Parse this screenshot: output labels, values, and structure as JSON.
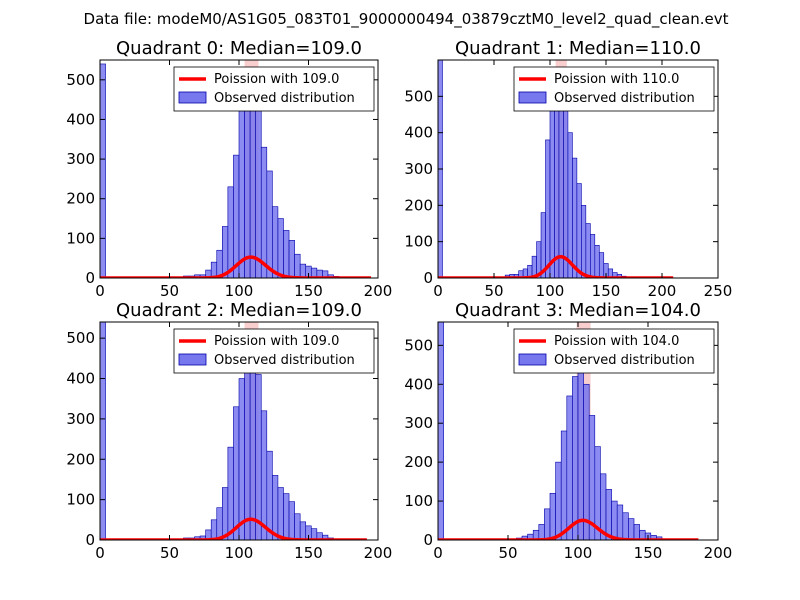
{
  "figure": {
    "title": "Data file: modeM0/AS1G05_083T01_9000000494_03879cztM0_level2_quad_clean.evt"
  },
  "colors": {
    "hist_fill": "#7777ee",
    "hist_edge": "#0000aa",
    "poisson_line": "#ff0000",
    "median_band": "#f3a6a6",
    "axes": "#000000"
  },
  "chart_data": [
    {
      "type": "bar",
      "title": "Quadrant 0: Median=109.0",
      "median": 109.0,
      "xlim": [
        0,
        200
      ],
      "ylim": [
        0,
        550
      ],
      "xticks": [
        0,
        50,
        100,
        150,
        200
      ],
      "yticks": [
        0,
        100,
        200,
        300,
        400,
        500
      ],
      "bin_width": 4,
      "bins": [
        [
          0,
          540
        ],
        [
          60,
          5
        ],
        [
          64,
          5
        ],
        [
          68,
          8
        ],
        [
          72,
          8
        ],
        [
          76,
          20
        ],
        [
          80,
          40
        ],
        [
          84,
          70
        ],
        [
          88,
          130
        ],
        [
          92,
          230
        ],
        [
          96,
          310
        ],
        [
          100,
          430
        ],
        [
          104,
          505
        ],
        [
          108,
          500
        ],
        [
          112,
          450
        ],
        [
          116,
          330
        ],
        [
          120,
          270
        ],
        [
          124,
          180
        ],
        [
          128,
          150
        ],
        [
          132,
          120
        ],
        [
          136,
          95
        ],
        [
          140,
          60
        ],
        [
          144,
          35
        ],
        [
          148,
          30
        ],
        [
          152,
          25
        ],
        [
          156,
          20
        ],
        [
          160,
          18
        ],
        [
          164,
          8
        ],
        [
          168,
          4
        ],
        [
          172,
          3
        ]
      ],
      "poisson_mean": 109.0,
      "poisson_scale": 4.0,
      "poisson_xmax": 195,
      "legend": [
        "Poission with 109.0",
        "Observed distribution"
      ]
    },
    {
      "type": "bar",
      "title": "Quadrant 1: Median=110.0",
      "median": 110.0,
      "xlim": [
        0,
        250
      ],
      "ylim": [
        0,
        600
      ],
      "xticks": [
        0,
        50,
        100,
        150,
        200,
        250
      ],
      "yticks": [
        0,
        100,
        200,
        300,
        400,
        500
      ],
      "bin_width": 4,
      "bins": [
        [
          0,
          600
        ],
        [
          60,
          8
        ],
        [
          64,
          10
        ],
        [
          68,
          10
        ],
        [
          72,
          20
        ],
        [
          76,
          25
        ],
        [
          80,
          35
        ],
        [
          84,
          60
        ],
        [
          88,
          100
        ],
        [
          92,
          180
        ],
        [
          96,
          380
        ],
        [
          100,
          460
        ],
        [
          104,
          510
        ],
        [
          108,
          535
        ],
        [
          112,
          490
        ],
        [
          116,
          400
        ],
        [
          120,
          330
        ],
        [
          124,
          260
        ],
        [
          128,
          200
        ],
        [
          132,
          150
        ],
        [
          136,
          120
        ],
        [
          140,
          90
        ],
        [
          144,
          70
        ],
        [
          148,
          40
        ],
        [
          152,
          25
        ],
        [
          156,
          15
        ],
        [
          160,
          10
        ],
        [
          164,
          5
        ]
      ],
      "poisson_mean": 110.0,
      "poisson_scale": 4.0,
      "poisson_xmax": 210,
      "legend": [
        "Poission with 110.0",
        "Observed distribution"
      ]
    },
    {
      "type": "bar",
      "title": "Quadrant 2: Median=109.0",
      "median": 109.0,
      "xlim": [
        0,
        200
      ],
      "ylim": [
        0,
        540
      ],
      "xticks": [
        0,
        50,
        100,
        150,
        200
      ],
      "yticks": [
        0,
        100,
        200,
        300,
        400,
        500
      ],
      "bin_width": 4,
      "bins": [
        [
          0,
          540
        ],
        [
          60,
          5
        ],
        [
          64,
          5
        ],
        [
          68,
          8
        ],
        [
          72,
          10
        ],
        [
          76,
          25
        ],
        [
          80,
          50
        ],
        [
          84,
          80
        ],
        [
          88,
          130
        ],
        [
          92,
          230
        ],
        [
          96,
          330
        ],
        [
          100,
          400
        ],
        [
          104,
          500
        ],
        [
          108,
          510
        ],
        [
          112,
          410
        ],
        [
          116,
          320
        ],
        [
          120,
          220
        ],
        [
          124,
          160
        ],
        [
          128,
          130
        ],
        [
          132,
          115
        ],
        [
          136,
          95
        ],
        [
          140,
          65
        ],
        [
          144,
          45
        ],
        [
          148,
          35
        ],
        [
          152,
          28
        ],
        [
          156,
          18
        ],
        [
          160,
          12
        ],
        [
          164,
          5
        ]
      ],
      "poisson_mean": 109.0,
      "poisson_scale": 4.0,
      "poisson_xmax": 192,
      "legend": [
        "Poission with 109.0",
        "Observed distribution"
      ]
    },
    {
      "type": "bar",
      "title": "Quadrant 3: Median=104.0",
      "median": 104.0,
      "xlim": [
        0,
        200
      ],
      "ylim": [
        0,
        560
      ],
      "xticks": [
        0,
        50,
        100,
        150,
        200
      ],
      "yticks": [
        0,
        100,
        200,
        300,
        400,
        500
      ],
      "bin_width": 4,
      "bins": [
        [
          0,
          560
        ],
        [
          56,
          5
        ],
        [
          60,
          10
        ],
        [
          64,
          15
        ],
        [
          68,
          25
        ],
        [
          72,
          40
        ],
        [
          76,
          80
        ],
        [
          80,
          120
        ],
        [
          84,
          200
        ],
        [
          88,
          280
        ],
        [
          92,
          370
        ],
        [
          96,
          420
        ],
        [
          100,
          500
        ],
        [
          104,
          400
        ],
        [
          108,
          320
        ],
        [
          112,
          240
        ],
        [
          116,
          170
        ],
        [
          120,
          130
        ],
        [
          124,
          100
        ],
        [
          128,
          90
        ],
        [
          132,
          70
        ],
        [
          136,
          55
        ],
        [
          140,
          40
        ],
        [
          144,
          25
        ],
        [
          148,
          18
        ],
        [
          152,
          12
        ],
        [
          156,
          8
        ],
        [
          160,
          3
        ]
      ],
      "poisson_mean": 104.0,
      "poisson_scale": 4.0,
      "poisson_xmax": 186,
      "legend": [
        "Poission with 104.0",
        "Observed distribution"
      ]
    }
  ]
}
